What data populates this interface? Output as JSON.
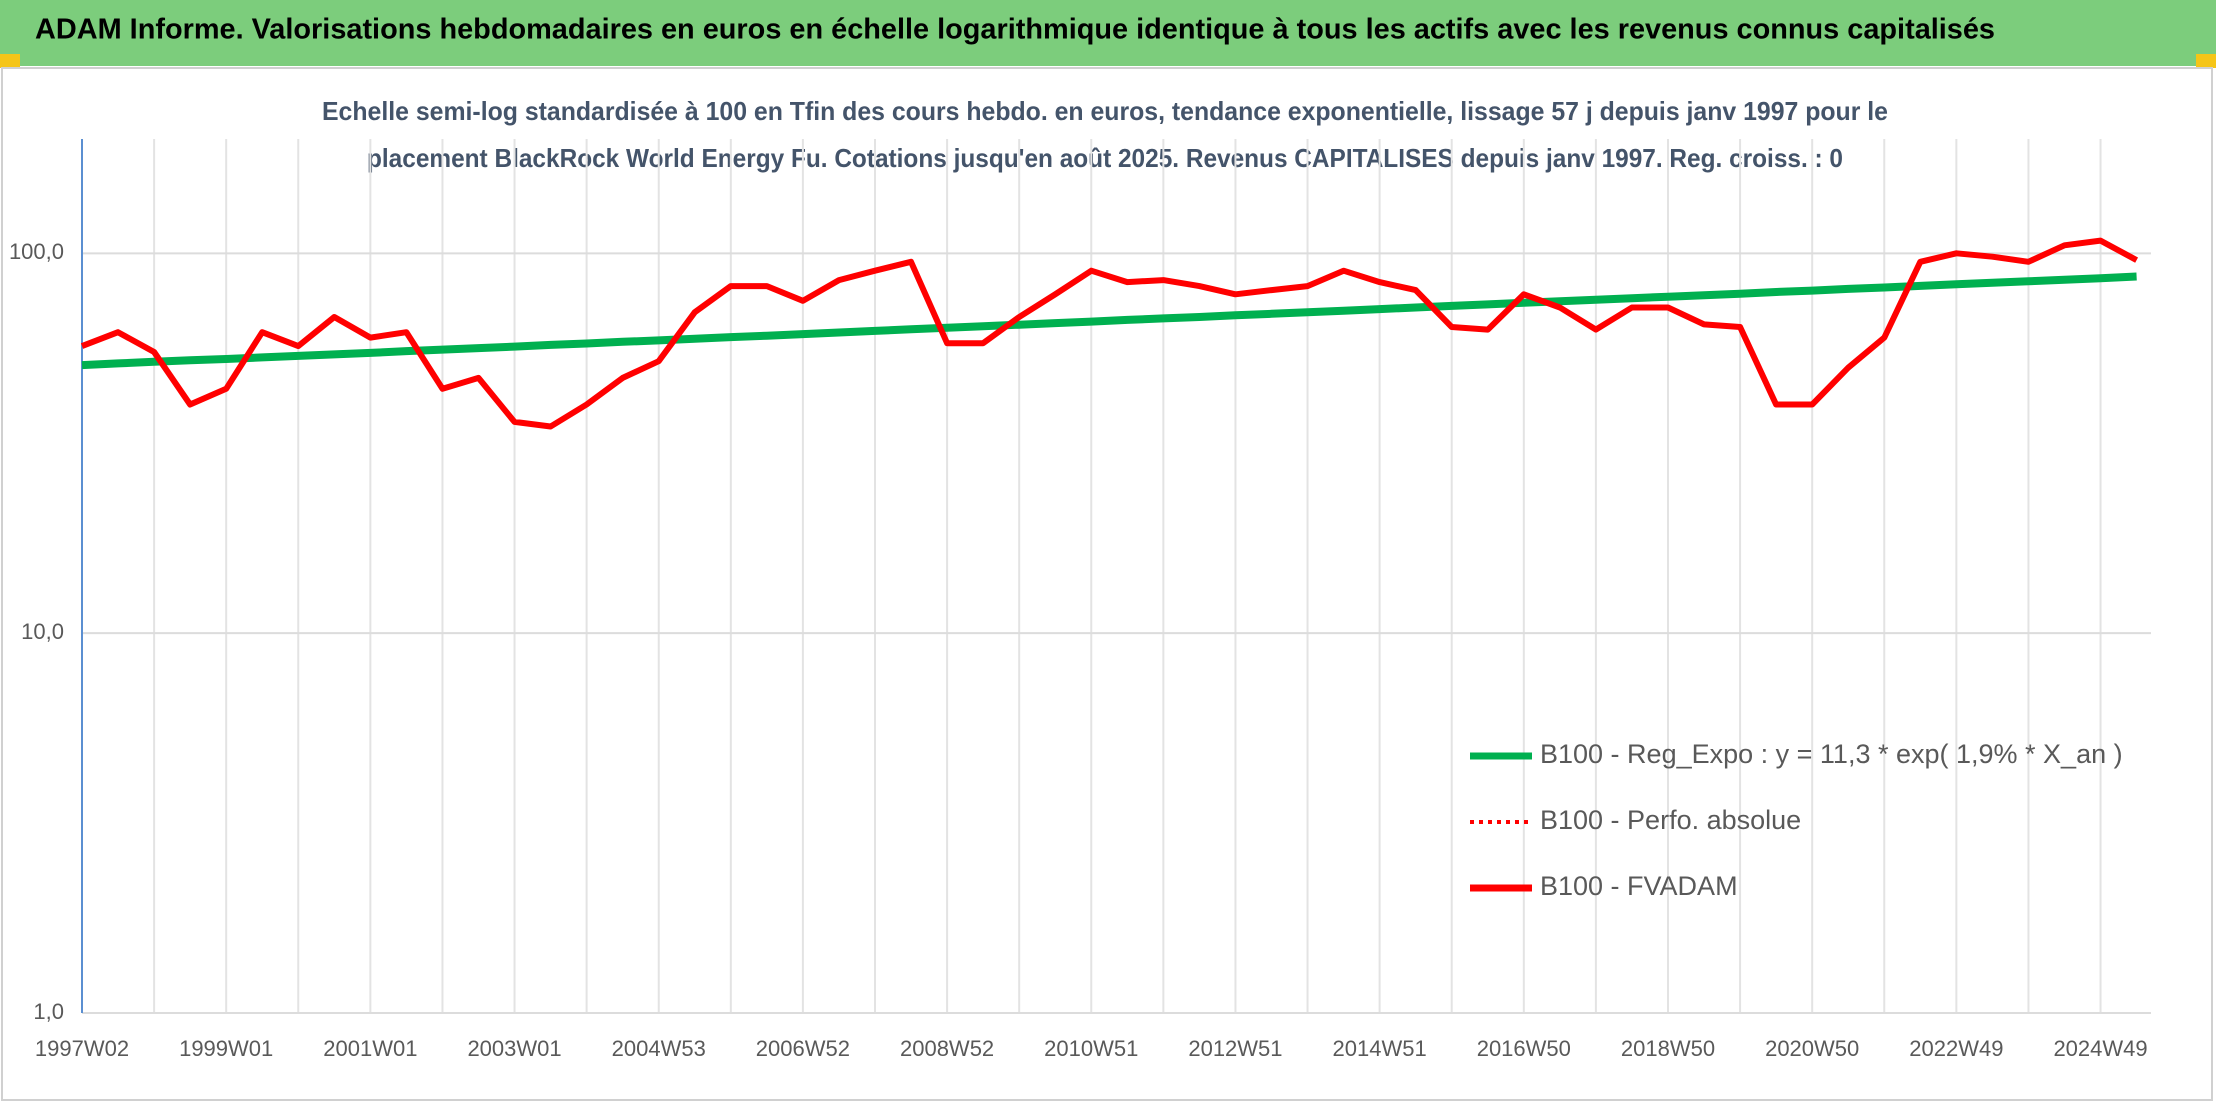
{
  "header": {
    "title": "ADAM Informe. Valorisations hebdomadaires en euros en échelle logarithmique identique à tous les actifs avec les revenus connus capitalisés"
  },
  "chart_data": {
    "type": "line",
    "title": [
      "Echelle semi-log standardisée à 100 en Tfin des cours hebdo. en euros, tendance exponentielle, lissage 57 j depuis janv 1997 pour le",
      "placement BlackRock World Energy Fu. Cotations jusqu'en août 2025. Revenus CAPITALISES depuis janv 1997. Reg. croiss. : 0"
    ],
    "categories": [
      "1997W02",
      null,
      null,
      null,
      "1999W01",
      null,
      null,
      null,
      "2001W01",
      null,
      null,
      null,
      "2003W01",
      null,
      null,
      null,
      "2004W53",
      null,
      null,
      null,
      "2006W52",
      null,
      null,
      null,
      "2008W52",
      null,
      null,
      null,
      "2010W51",
      null,
      null,
      null,
      "2012W51",
      null,
      null,
      null,
      "2014W51",
      null,
      null,
      null,
      "2016W50",
      null,
      null,
      null,
      "2018W50",
      null,
      null,
      null,
      "2020W50",
      null,
      null,
      null,
      "2022W49",
      null,
      null,
      null,
      "2024W49",
      null
    ],
    "series": [
      {
        "name": "B100 - Reg_Expo : y = 11,3 * exp( 1,9% *  X_an )",
        "color": "#00b050",
        "style": "solid",
        "values": [
          50.8,
          51.3,
          51.8,
          52.3,
          52.7,
          53.2,
          53.7,
          54.2,
          54.7,
          55.3,
          55.8,
          56.3,
          56.8,
          57.4,
          57.9,
          58.5,
          59.0,
          59.6,
          60.2,
          60.7,
          61.3,
          61.9,
          62.5,
          63.1,
          63.7,
          64.3,
          64.9,
          65.5,
          66.1,
          66.8,
          67.4,
          68.0,
          68.7,
          69.3,
          70.0,
          70.6,
          71.3,
          72.0,
          72.7,
          73.4,
          74.1,
          74.8,
          75.5,
          76.2,
          76.9,
          77.6,
          78.3,
          79.1,
          79.8,
          80.6,
          81.3,
          82.1,
          82.9,
          83.7,
          84.4,
          85.2,
          86.0,
          86.9
        ]
      },
      {
        "name": "B100 - Perfo. absolue",
        "color": "#ff0000",
        "style": "dotted",
        "values": [
          null,
          null,
          null,
          null,
          null,
          null,
          null,
          null,
          null,
          null,
          null,
          null,
          null,
          null,
          null,
          null,
          null,
          null,
          null,
          null,
          null,
          null,
          null,
          null,
          null,
          null,
          null,
          null,
          null,
          null,
          null,
          null,
          null,
          null,
          null,
          null,
          null,
          null,
          null,
          null,
          null,
          null,
          null,
          null,
          null,
          null,
          null,
          null,
          null,
          null,
          null,
          null,
          null,
          null,
          null,
          null,
          null,
          null
        ]
      },
      {
        "name": "B100 - FVADAM",
        "color": "#ff0000",
        "style": "solid",
        "values": [
          57,
          62,
          55,
          40,
          44,
          62,
          57,
          68,
          60,
          62,
          44,
          47,
          36,
          35,
          40,
          47,
          52,
          70,
          82,
          82,
          75,
          85,
          90,
          95,
          58,
          58,
          68,
          78,
          90,
          84,
          85,
          82,
          78,
          80,
          82,
          90,
          84,
          80,
          64,
          63,
          78,
          72,
          63,
          72,
          72,
          65,
          64,
          40,
          40,
          50,
          60,
          95,
          100,
          98,
          95,
          105,
          108,
          96
        ]
      }
    ],
    "ylim": [
      1,
      200
    ],
    "yticks": [
      {
        "value": 1,
        "label": "1,0"
      },
      {
        "value": 10,
        "label": "10,0"
      },
      {
        "value": 100,
        "label": "100,0"
      }
    ],
    "log_scale": true,
    "grid": true,
    "legend_position": "lower right"
  }
}
